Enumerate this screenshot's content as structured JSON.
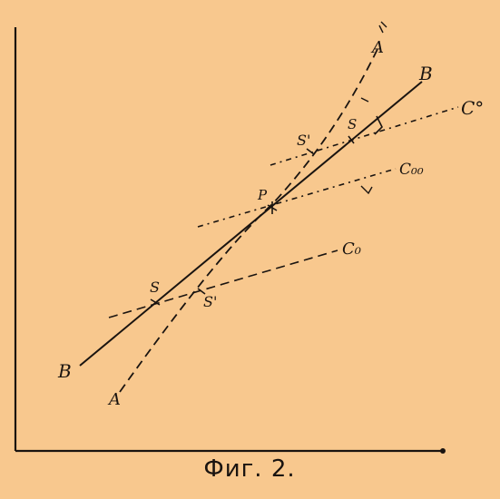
{
  "caption": "Фиг. 2.",
  "labels": {
    "A_top": "A",
    "A_bottom": "A",
    "B_top": "B",
    "B_bottom": "B",
    "C0": "C°",
    "C00": "C₀₀",
    "C0_lower": "C₀",
    "P": "P",
    "S_lower": "S",
    "S_prime_lower": "S'",
    "S_upper": "S",
    "S_prime_upper": "S'"
  },
  "colors": {
    "background": "#f8c88e",
    "ink": "#1a1410"
  }
}
